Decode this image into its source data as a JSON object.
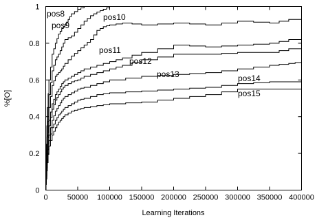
{
  "chart_data": {
    "type": "line",
    "title": "",
    "xlabel": "Learning Iterations",
    "ylabel": "%[O]",
    "xlim": [
      0,
      400000
    ],
    "ylim": [
      0,
      1
    ],
    "xticks": [
      0,
      50000,
      100000,
      150000,
      200000,
      250000,
      300000,
      350000,
      400000
    ],
    "xtick_labels": [
      "0",
      "50000",
      "100000",
      "150000",
      "200000",
      "250000",
      "300000",
      "350000",
      "400000"
    ],
    "yticks": [
      0,
      0.2,
      0.4,
      0.6,
      0.8,
      1
    ],
    "ytick_labels": [
      "0",
      "0.2",
      "0.4",
      "0.6",
      "0.8",
      "1"
    ],
    "grid": false,
    "legend": "inline labels near each curve",
    "series": [
      {
        "name": "pos8",
        "x": [
          0,
          1000,
          2500,
          5000,
          10000,
          15000,
          20000,
          25000,
          30000,
          35000,
          40000,
          50000,
          60000,
          70000,
          400000
        ],
        "values": [
          0,
          0.25,
          0.45,
          0.6,
          0.74,
          0.8,
          0.85,
          0.88,
          0.9,
          0.93,
          0.96,
          0.985,
          1.0,
          1.0,
          1.0
        ]
      },
      {
        "name": "pos9",
        "x": [
          0,
          1000,
          2500,
          5000,
          10000,
          15000,
          20000,
          25000,
          30000,
          40000,
          50000,
          60000,
          70000,
          80000,
          90000,
          100000,
          400000
        ],
        "values": [
          0,
          0.2,
          0.38,
          0.52,
          0.65,
          0.71,
          0.74,
          0.78,
          0.82,
          0.84,
          0.88,
          0.92,
          0.95,
          0.97,
          0.985,
          1.0,
          1.0
        ]
      },
      {
        "name": "pos10",
        "x": [
          0,
          1000,
          2500,
          5000,
          10000,
          15000,
          20000,
          25000,
          30000,
          40000,
          50000,
          60000,
          70000,
          80000,
          90000,
          100000,
          120000,
          150000,
          200000,
          250000,
          300000,
          350000,
          380000,
          400000
        ],
        "values": [
          0,
          0.15,
          0.3,
          0.45,
          0.57,
          0.62,
          0.64,
          0.66,
          0.69,
          0.73,
          0.76,
          0.79,
          0.82,
          0.87,
          0.89,
          0.9,
          0.91,
          0.9,
          0.91,
          0.9,
          0.92,
          0.91,
          0.93,
          0.93
        ]
      },
      {
        "name": "pos11",
        "x": [
          0,
          1000,
          2500,
          5000,
          10000,
          15000,
          20000,
          25000,
          30000,
          40000,
          50000,
          60000,
          80000,
          100000,
          120000,
          150000,
          200000,
          250000,
          300000,
          350000,
          380000,
          400000
        ],
        "values": [
          0,
          0.12,
          0.25,
          0.38,
          0.47,
          0.52,
          0.55,
          0.58,
          0.6,
          0.62,
          0.64,
          0.66,
          0.68,
          0.7,
          0.72,
          0.75,
          0.79,
          0.78,
          0.79,
          0.8,
          0.82,
          0.82
        ]
      },
      {
        "name": "pos12",
        "x": [
          0,
          1000,
          2500,
          5000,
          10000,
          15000,
          20000,
          25000,
          30000,
          40000,
          50000,
          60000,
          80000,
          100000,
          120000,
          150000,
          200000,
          250000,
          300000,
          350000,
          380000,
          400000
        ],
        "values": [
          0,
          0.1,
          0.22,
          0.35,
          0.44,
          0.49,
          0.52,
          0.55,
          0.57,
          0.59,
          0.6,
          0.62,
          0.64,
          0.66,
          0.68,
          0.71,
          0.74,
          0.74,
          0.75,
          0.75,
          0.77,
          0.77
        ]
      },
      {
        "name": "pos13",
        "x": [
          0,
          1000,
          2500,
          5000,
          10000,
          15000,
          20000,
          25000,
          30000,
          40000,
          50000,
          60000,
          80000,
          100000,
          150000,
          200000,
          250000,
          300000,
          350000,
          380000,
          400000
        ],
        "values": [
          0,
          0.08,
          0.2,
          0.3,
          0.38,
          0.43,
          0.46,
          0.49,
          0.51,
          0.53,
          0.55,
          0.56,
          0.58,
          0.6,
          0.62,
          0.63,
          0.64,
          0.66,
          0.68,
          0.69,
          0.7
        ]
      },
      {
        "name": "pos14",
        "x": [
          0,
          1000,
          2500,
          5000,
          10000,
          15000,
          20000,
          25000,
          30000,
          40000,
          50000,
          60000,
          80000,
          100000,
          150000,
          200000,
          250000,
          300000,
          350000,
          400000
        ],
        "values": [
          0,
          0.07,
          0.17,
          0.27,
          0.34,
          0.38,
          0.41,
          0.43,
          0.45,
          0.47,
          0.49,
          0.5,
          0.52,
          0.53,
          0.54,
          0.55,
          0.56,
          0.58,
          0.59,
          0.59
        ]
      },
      {
        "name": "pos15",
        "x": [
          0,
          1000,
          2500,
          5000,
          10000,
          15000,
          20000,
          25000,
          30000,
          40000,
          50000,
          60000,
          80000,
          100000,
          150000,
          200000,
          250000,
          300000,
          350000,
          400000
        ],
        "values": [
          0,
          0.06,
          0.15,
          0.24,
          0.3,
          0.34,
          0.37,
          0.39,
          0.41,
          0.43,
          0.44,
          0.45,
          0.46,
          0.47,
          0.48,
          0.5,
          0.52,
          0.55,
          0.55,
          0.55
        ]
      }
    ]
  }
}
